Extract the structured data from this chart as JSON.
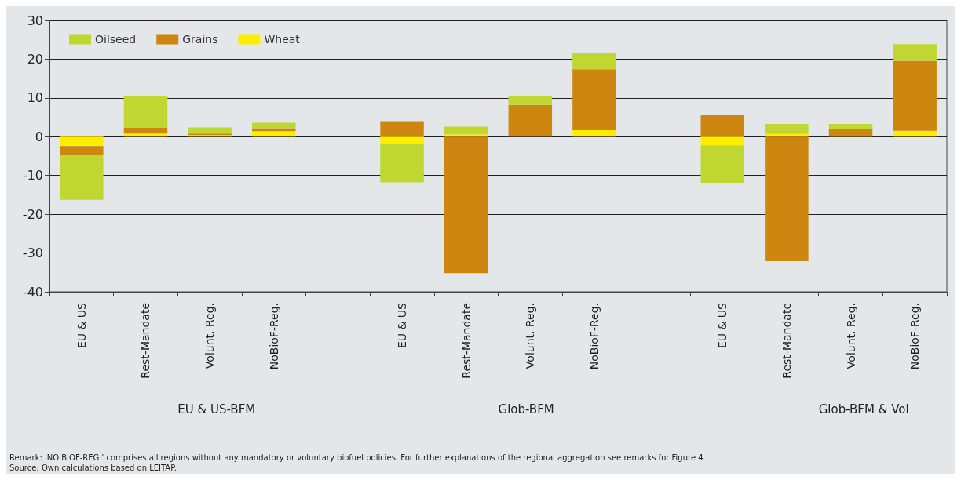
{
  "chart_data": {
    "type": "bar",
    "stacked": true,
    "categories": [
      "EU & US",
      "Rest-Mandate",
      "Volunt. Reg.",
      "NoBioF-Reg.",
      null,
      "EU & US",
      "Rest-Mandate",
      "Volunt. Reg.",
      "NoBioF-Reg.",
      null,
      "EU & US",
      "Rest-Mandate",
      "Volunt. Reg.",
      "NoBioF-Reg."
    ],
    "series": [
      {
        "name": "Wheat",
        "color": "#ffed00",
        "values": [
          -2.4,
          0.8,
          0.4,
          1.4,
          null,
          -1.8,
          0.6,
          0,
          1.7,
          null,
          -2.2,
          0.7,
          0.2,
          1.5
        ]
      },
      {
        "name": "Grains",
        "color": "#cd8710",
        "values": [
          -2.4,
          1.6,
          0.4,
          0.8,
          null,
          4.0,
          -35.2,
          8.2,
          15.7,
          null,
          5.6,
          -32.1,
          1.9,
          18.1
        ]
      },
      {
        "name": "Oilseed",
        "color": "#bfd730",
        "values": [
          -11.5,
          8.2,
          1.6,
          1.4,
          null,
          -10.0,
          2.0,
          2.2,
          4.1,
          null,
          -9.7,
          2.6,
          1.2,
          4.3
        ]
      }
    ],
    "ylim": [
      -40,
      30
    ],
    "yticks": [
      -40,
      -30,
      -20,
      -10,
      0,
      10,
      20,
      30
    ],
    "grid": "y",
    "legend": "top left",
    "annotations": [
      "EU & US-BFM",
      "Glob-BFM",
      "Glob-BFM & Vol",
      "Remark: 'NO BIOF-REG.' comprises all regions without any mandatory or voluntary biofuel policies. For further explanations of the regional aggregation see remarks for Figure 4.",
      "Source: Own calculations based on LEITAP."
    ]
  }
}
